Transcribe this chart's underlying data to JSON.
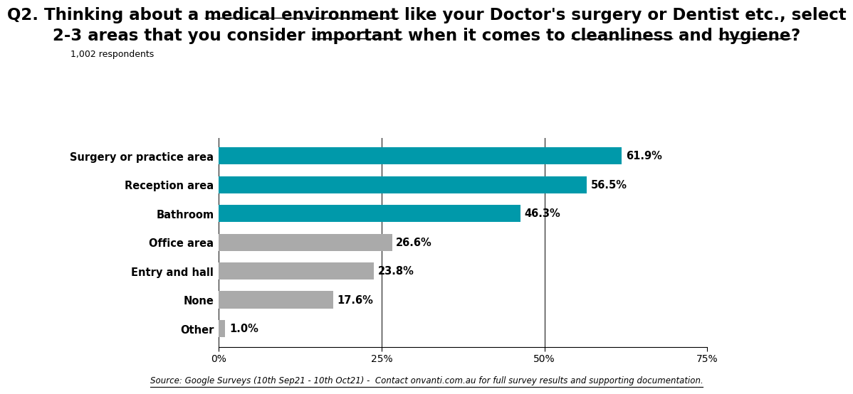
{
  "categories": [
    "Surgery or practice area",
    "Reception area",
    "Bathroom",
    "Office area",
    "Entry and hall",
    "None",
    "Other"
  ],
  "values": [
    61.9,
    56.5,
    46.3,
    26.6,
    23.8,
    17.6,
    1.0
  ],
  "labels": [
    "61.9%",
    "56.5%",
    "46.3%",
    "26.6%",
    "23.8%",
    "17.6%",
    "1.0%"
  ],
  "teal_color": "#0099AA",
  "gray_color": "#AAAAAA",
  "background_color": "#FFFFFF",
  "xlim_max": 75,
  "xticks": [
    0,
    25,
    50,
    75
  ],
  "xticklabels": [
    "0%",
    "25%",
    "50%",
    "75%"
  ],
  "respondents_text": "1,002 respondents",
  "source_text": "Source: Google Surveys (10th Sep21 - 10th Oct21) -  Contact onvanti.com.au for full survey results and supporting documentation.",
  "title_fontsize": 16.5,
  "label_fontsize": 10.5,
  "category_fontsize": 10.5,
  "source_fontsize": 8.5,
  "line1_parts": [
    {
      "text": "Q2. Thinking about a ",
      "underline": false
    },
    {
      "text": "medical environment",
      "underline": true
    },
    {
      "text": " like your Doctor's surgery or Dentist etc., select",
      "underline": false
    }
  ],
  "line2_parts": [
    {
      "text": "2-3 areas that you consider ",
      "underline": false
    },
    {
      "text": "important",
      "underline": true
    },
    {
      "text": " when it comes to ",
      "underline": false
    },
    {
      "text": "cleanliness",
      "underline": true
    },
    {
      "text": " and ",
      "underline": false
    },
    {
      "text": "hygiene",
      "underline": true
    },
    {
      "text": "?",
      "underline": false
    }
  ]
}
